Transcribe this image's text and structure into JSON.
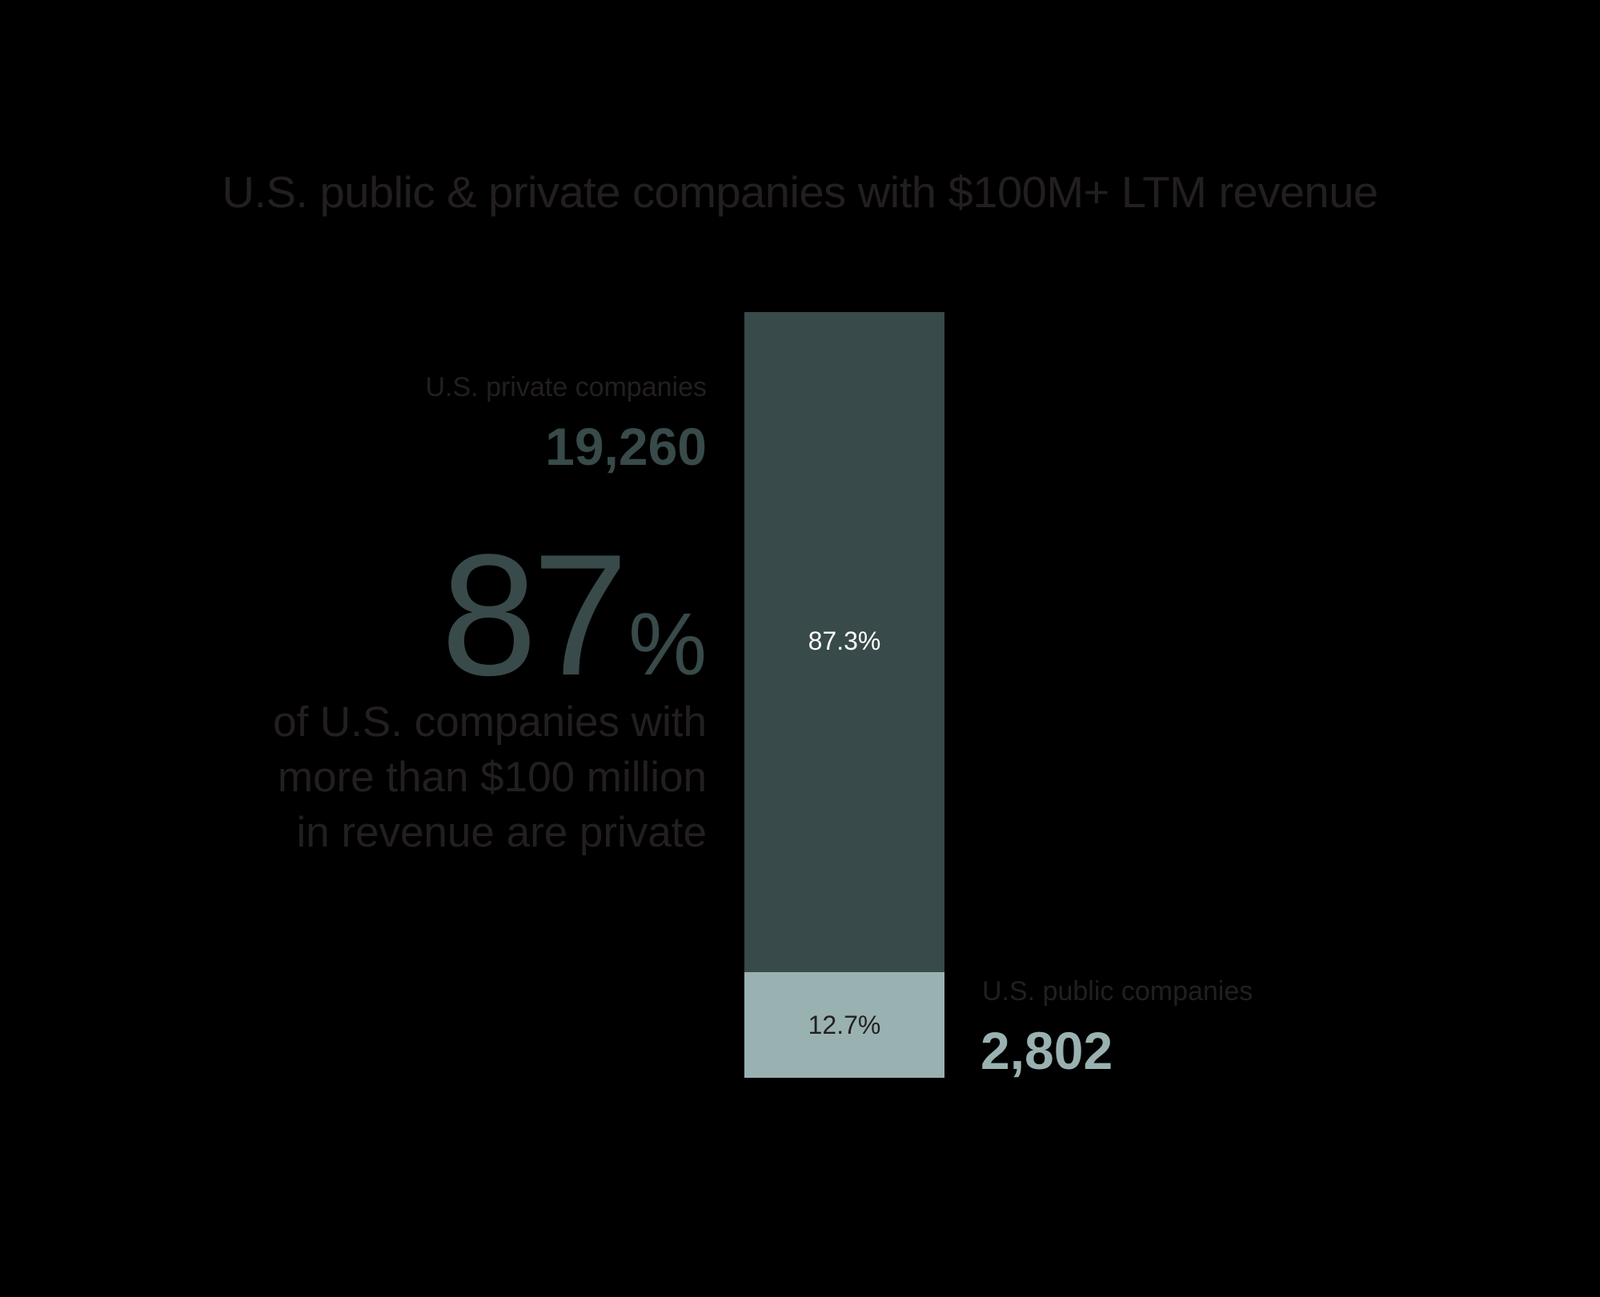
{
  "chart_data": {
    "type": "bar",
    "subtype": "stacked-100-percent",
    "title": "U.S. public & private companies with $100M+ LTM revenue",
    "categories": [
      "U.S. companies with $100M+ LTM revenue"
    ],
    "series": [
      {
        "name": "U.S. private companies",
        "count": 19260,
        "count_label": "19,260",
        "percent": 87.3,
        "percent_label": "87.3%",
        "color": "#384a49"
      },
      {
        "name": "U.S. public companies",
        "count": 2802,
        "count_label": "2,802",
        "percent": 12.7,
        "percent_label": "12.7%",
        "color": "#99b2b1"
      }
    ],
    "xlabel": "",
    "ylabel": "",
    "ylim": [
      0,
      100
    ],
    "grid": false,
    "legend": "direct labels beside bar segments"
  },
  "title": "U.S. public & private companies with $100M+ LTM revenue",
  "private": {
    "label": "U.S. private companies",
    "value": "19,260",
    "segment_percent": "87.3%"
  },
  "public": {
    "label": "U.S. public companies",
    "value": "2,802",
    "segment_percent": "12.7%"
  },
  "highlight": {
    "number": "87",
    "sign": "%",
    "statement_lines": [
      "of U.S. companies with",
      "more than $100 million",
      "in revenue are private"
    ]
  },
  "colors": {
    "background": "#000000",
    "private": "#384a49",
    "public": "#99b2b1",
    "text": "#231f20"
  }
}
